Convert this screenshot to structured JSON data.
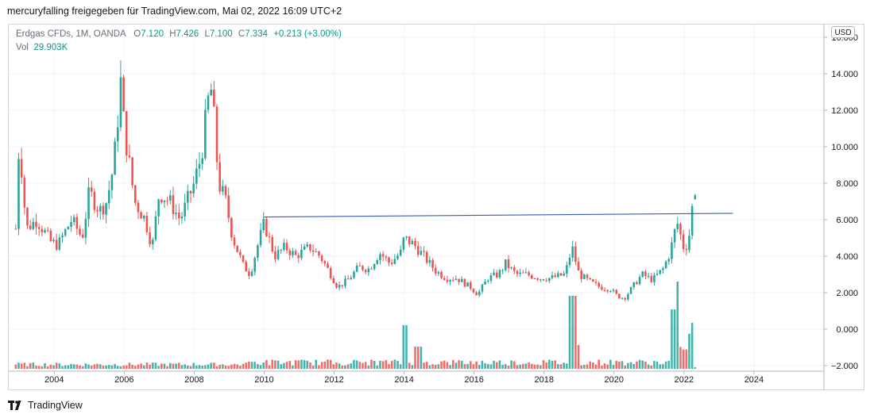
{
  "header": {
    "publish_text": "mercuryfalling freigegeben für TradingView.com, Mai 02, 2022 16:09 UTC+2"
  },
  "legend": {
    "symbol": "Erdgas CFDs, 1M, OANDA",
    "open_label": "O",
    "open_value": "7.120",
    "high_label": "H",
    "high_value": "7.426",
    "low_label": "L",
    "low_value": "7.100",
    "close_label": "C",
    "close_value": "7.334",
    "change": "+0.213 (+3.00%)",
    "vol_label": "Vol",
    "vol_value": "29.903K"
  },
  "currency": "USD",
  "footer": {
    "brand": "TradingView"
  },
  "colors": {
    "up": "#26a69a",
    "down": "#ef5350",
    "vol_up": "#26a69a",
    "vol_down": "#ef5350",
    "trendline": "#3a5bb5",
    "grid": "#f0f3fa"
  },
  "chart_data": {
    "type": "candlestick",
    "title": "Erdgas CFDs, 1M, OANDA",
    "y_ticks": [
      "16.000",
      "14.000",
      "12.000",
      "10.000",
      "8.000",
      "6.000",
      "4.000",
      "2.000",
      "0.000",
      "−2.000"
    ],
    "y_tick_values": [
      16,
      14,
      12,
      10,
      8,
      6,
      4,
      2,
      0,
      -2
    ],
    "x_ticks": [
      "2004",
      "2006",
      "2008",
      "2010",
      "2012",
      "2014",
      "2016",
      "2018",
      "2020",
      "2022",
      "2024"
    ],
    "x_tick_values": [
      2004,
      2006,
      2008,
      2010,
      2012,
      2014,
      2016,
      2018,
      2020,
      2022,
      2024
    ],
    "xlim": [
      2002.7,
      2026.0
    ],
    "ylim": [
      -2.0,
      16.5
    ],
    "candles_ohlc_keypoints": [
      {
        "t": 2002.9,
        "c": 5.5
      },
      {
        "t": 2003.0,
        "c": 10.5
      },
      {
        "t": 2003.2,
        "c": 5.5
      },
      {
        "t": 2003.5,
        "c": 6.0
      },
      {
        "t": 2003.9,
        "c": 4.8
      },
      {
        "t": 2004.1,
        "c": 4.6
      },
      {
        "t": 2004.5,
        "c": 6.0
      },
      {
        "t": 2004.8,
        "c": 5.0
      },
      {
        "t": 2005.0,
        "c": 7.5
      },
      {
        "t": 2005.3,
        "c": 6.5
      },
      {
        "t": 2005.5,
        "c": 7.0
      },
      {
        "t": 2005.7,
        "c": 9.0
      },
      {
        "t": 2005.9,
        "c": 13.5
      },
      {
        "t": 2006.0,
        "c": 11.0
      },
      {
        "t": 2006.3,
        "c": 7.0
      },
      {
        "t": 2006.6,
        "c": 6.0
      },
      {
        "t": 2006.8,
        "c": 4.5
      },
      {
        "t": 2007.0,
        "c": 7.5
      },
      {
        "t": 2007.3,
        "c": 7.0
      },
      {
        "t": 2007.6,
        "c": 6.0
      },
      {
        "t": 2007.8,
        "c": 7.0
      },
      {
        "t": 2008.0,
        "c": 8.0
      },
      {
        "t": 2008.2,
        "c": 9.5
      },
      {
        "t": 2008.4,
        "c": 12.5
      },
      {
        "t": 2008.5,
        "c": 13.2
      },
      {
        "t": 2008.7,
        "c": 8.0
      },
      {
        "t": 2008.9,
        "c": 7.0
      },
      {
        "t": 2009.1,
        "c": 5.0
      },
      {
        "t": 2009.4,
        "c": 3.5
      },
      {
        "t": 2009.6,
        "c": 3.0
      },
      {
        "t": 2009.8,
        "c": 4.5
      },
      {
        "t": 2010.0,
        "c": 5.8
      },
      {
        "t": 2010.3,
        "c": 4.0
      },
      {
        "t": 2010.6,
        "c": 4.5
      },
      {
        "t": 2010.9,
        "c": 4.0
      },
      {
        "t": 2011.3,
        "c": 4.5
      },
      {
        "t": 2011.6,
        "c": 4.0
      },
      {
        "t": 2011.9,
        "c": 3.0
      },
      {
        "t": 2012.1,
        "c": 2.3
      },
      {
        "t": 2012.4,
        "c": 2.7
      },
      {
        "t": 2012.7,
        "c": 3.4
      },
      {
        "t": 2013.0,
        "c": 3.3
      },
      {
        "t": 2013.3,
        "c": 4.2
      },
      {
        "t": 2013.6,
        "c": 3.6
      },
      {
        "t": 2013.9,
        "c": 4.2
      },
      {
        "t": 2014.0,
        "c": 5.0
      },
      {
        "t": 2014.3,
        "c": 4.6
      },
      {
        "t": 2014.6,
        "c": 3.9
      },
      {
        "t": 2014.9,
        "c": 3.2
      },
      {
        "t": 2015.2,
        "c": 2.8
      },
      {
        "t": 2015.5,
        "c": 2.8
      },
      {
        "t": 2015.9,
        "c": 2.3
      },
      {
        "t": 2016.1,
        "c": 1.9
      },
      {
        "t": 2016.4,
        "c": 2.8
      },
      {
        "t": 2016.7,
        "c": 3.0
      },
      {
        "t": 2016.9,
        "c": 3.6
      },
      {
        "t": 2017.2,
        "c": 3.0
      },
      {
        "t": 2017.5,
        "c": 3.0
      },
      {
        "t": 2017.9,
        "c": 2.8
      },
      {
        "t": 2018.2,
        "c": 2.8
      },
      {
        "t": 2018.6,
        "c": 3.0
      },
      {
        "t": 2018.8,
        "c": 4.5
      },
      {
        "t": 2019.0,
        "c": 3.0
      },
      {
        "t": 2019.3,
        "c": 2.6
      },
      {
        "t": 2019.6,
        "c": 2.3
      },
      {
        "t": 2019.9,
        "c": 2.2
      },
      {
        "t": 2020.1,
        "c": 1.8
      },
      {
        "t": 2020.3,
        "c": 1.7
      },
      {
        "t": 2020.6,
        "c": 2.5
      },
      {
        "t": 2020.8,
        "c": 3.0
      },
      {
        "t": 2021.1,
        "c": 2.7
      },
      {
        "t": 2021.4,
        "c": 3.3
      },
      {
        "t": 2021.6,
        "c": 4.2
      },
      {
        "t": 2021.8,
        "c": 5.9
      },
      {
        "t": 2022.0,
        "c": 4.4
      },
      {
        "t": 2022.1,
        "c": 4.7
      },
      {
        "t": 2022.2,
        "c": 5.7
      },
      {
        "t": 2022.25,
        "c": 7.1
      },
      {
        "t": 2022.35,
        "c": 7.33
      }
    ],
    "trendline": {
      "x0": 2010.0,
      "y0": 6.15,
      "x1": 2023.4,
      "y1": 6.35
    }
  }
}
